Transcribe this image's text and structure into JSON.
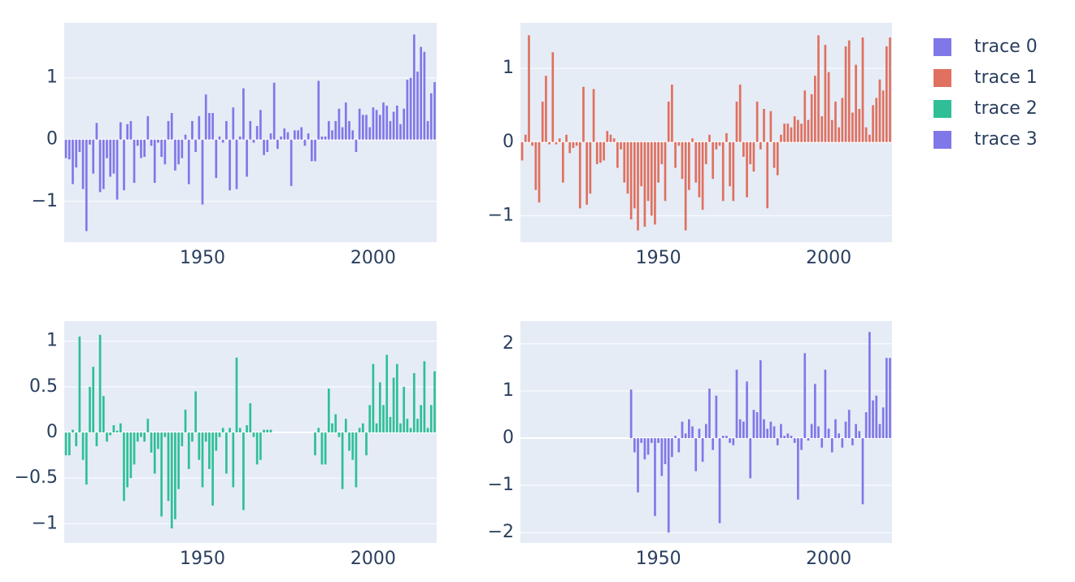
{
  "chart_data": [
    {
      "type": "bar",
      "legend": "right",
      "grid": true,
      "x": [
        1910,
        1911,
        1912,
        1913,
        1914,
        1915,
        1916,
        1917,
        1918,
        1919,
        1920,
        1921,
        1922,
        1923,
        1924,
        1925,
        1926,
        1927,
        1928,
        1929,
        1930,
        1931,
        1932,
        1933,
        1934,
        1935,
        1936,
        1937,
        1938,
        1939,
        1940,
        1941,
        1942,
        1943,
        1944,
        1945,
        1946,
        1947,
        1948,
        1949,
        1950,
        1951,
        1952,
        1953,
        1954,
        1955,
        1956,
        1957,
        1958,
        1959,
        1960,
        1961,
        1962,
        1963,
        1964,
        1965,
        1966,
        1967,
        1968,
        1969,
        1970,
        1971,
        1972,
        1973,
        1974,
        1975,
        1976,
        1977,
        1978,
        1979,
        1980,
        1981,
        1982,
        1983,
        1984,
        1985,
        1986,
        1987,
        1988,
        1989,
        1990,
        1991,
        1992,
        1993,
        1994,
        1995,
        1996,
        1997,
        1998,
        1999,
        2000,
        2001,
        2002,
        2003,
        2004,
        2005,
        2006,
        2007,
        2008,
        2009,
        2010,
        2011,
        2012,
        2013,
        2014,
        2015,
        2016,
        2017,
        2018
      ],
      "series": [
        {
          "name": "trace 0",
          "color": "#8078e8",
          "values": [
            -0.3,
            -0.32,
            -0.72,
            -0.45,
            -0.2,
            -0.8,
            -1.48,
            -0.08,
            -0.55,
            0.27,
            -0.85,
            -0.8,
            -0.3,
            -0.6,
            -0.55,
            -0.97,
            0.28,
            -0.82,
            0.25,
            0.3,
            -0.7,
            -0.1,
            -0.3,
            -0.28,
            0.38,
            -0.1,
            -0.7,
            -0.05,
            -0.28,
            -0.4,
            0.3,
            0.43,
            -0.5,
            -0.4,
            -0.3,
            0.08,
            -0.72,
            0.3,
            -0.2,
            0.38,
            -1.05,
            0.73,
            0.43,
            0.43,
            -0.62,
            0.05,
            -0.05,
            0.3,
            -0.82,
            0.52,
            -0.8,
            0.05,
            0.83,
            -0.6,
            0.3,
            -0.05,
            0.22,
            0.48,
            -0.25,
            -0.2,
            0.1,
            0.92,
            -0.15,
            0.05,
            0.18,
            0.12,
            -0.75,
            0.15,
            0.15,
            0.2,
            -0.1,
            0.1,
            -0.35,
            -0.35,
            0.95,
            0.05,
            0.05,
            0.3,
            0.15,
            0.3,
            0.5,
            0.2,
            0.6,
            0.3,
            0.15,
            -0.2,
            0.5,
            0.4,
            0.4,
            0.2,
            0.52,
            0.48,
            0.4,
            0.6,
            0.55,
            0.3,
            0.45,
            0.55,
            0.25,
            0.5,
            0.97,
            1.0,
            1.7,
            1.1,
            1.5,
            1.42,
            0.3,
            0.75,
            0.93
          ]
        }
      ],
      "xlim": [
        1909.5,
        2018.6
      ],
      "xticks": [
        1950,
        2000
      ],
      "ylim": [
        -1.66,
        1.89
      ],
      "yticks": [
        {
          "value": -1,
          "label": "−1"
        },
        0,
        1
      ]
    },
    {
      "type": "bar",
      "legend": "right",
      "grid": true,
      "x": [
        1910,
        1911,
        1912,
        1913,
        1914,
        1915,
        1916,
        1917,
        1918,
        1919,
        1920,
        1921,
        1922,
        1923,
        1924,
        1925,
        1926,
        1927,
        1928,
        1929,
        1930,
        1931,
        1932,
        1933,
        1934,
        1935,
        1936,
        1937,
        1938,
        1939,
        1940,
        1941,
        1942,
        1943,
        1944,
        1945,
        1946,
        1947,
        1948,
        1949,
        1950,
        1951,
        1952,
        1953,
        1954,
        1955,
        1956,
        1957,
        1958,
        1959,
        1960,
        1961,
        1962,
        1963,
        1964,
        1965,
        1966,
        1967,
        1968,
        1969,
        1970,
        1971,
        1972,
        1973,
        1974,
        1975,
        1976,
        1977,
        1978,
        1979,
        1980,
        1981,
        1982,
        1983,
        1984,
        1985,
        1986,
        1987,
        1988,
        1989,
        1990,
        1991,
        1992,
        1993,
        1994,
        1995,
        1996,
        1997,
        1998,
        1999,
        2000,
        2001,
        2002,
        2003,
        2004,
        2005,
        2006,
        2007,
        2008,
        2009,
        2010,
        2011,
        2012,
        2013,
        2014,
        2015,
        2016,
        2017,
        2018
      ],
      "series": [
        {
          "name": "trace 1",
          "color": "#e0705f",
          "values": [
            -0.25,
            0.1,
            1.45,
            -0.05,
            -0.65,
            -0.82,
            0.55,
            0.9,
            -0.03,
            1.22,
            -0.03,
            0.05,
            -0.55,
            0.1,
            -0.15,
            -0.08,
            -0.05,
            -0.9,
            0.75,
            -0.85,
            -0.7,
            0.72,
            -0.3,
            -0.28,
            -0.25,
            0.15,
            0.1,
            0.05,
            -0.35,
            -0.1,
            -0.55,
            -0.7,
            -1.05,
            -0.9,
            -1.2,
            -0.6,
            -1.15,
            -0.8,
            -1.0,
            -1.12,
            -0.55,
            -0.3,
            -0.8,
            0.55,
            0.78,
            -0.35,
            -0.05,
            -0.5,
            -1.2,
            -0.65,
            0.05,
            -0.55,
            -0.75,
            -0.92,
            -0.3,
            0.1,
            -0.5,
            -0.1,
            -0.05,
            -0.8,
            0.12,
            -0.6,
            -0.8,
            0.55,
            0.78,
            -0.2,
            -0.75,
            -0.3,
            -0.4,
            0.55,
            -0.1,
            0.45,
            -0.9,
            0.42,
            -0.35,
            -0.45,
            0.1,
            0.25,
            0.25,
            0.2,
            0.35,
            0.3,
            0.25,
            0.7,
            0.3,
            0.65,
            0.9,
            1.45,
            0.35,
            1.32,
            0.95,
            0.3,
            0.55,
            0.2,
            0.6,
            1.3,
            1.38,
            0.4,
            1.05,
            0.45,
            1.42,
            0.2,
            0.1,
            0.5,
            0.6,
            0.85,
            0.7,
            1.3,
            1.42
          ]
        }
      ],
      "xlim": [
        1909.5,
        2018.6
      ],
      "xticks": [
        1950,
        2000
      ],
      "ylim": [
        -1.36,
        1.62
      ],
      "yticks": [
        {
          "value": -1,
          "label": "−1"
        },
        0,
        1
      ]
    },
    {
      "type": "bar",
      "legend": "right",
      "grid": true,
      "x": [
        1910,
        1911,
        1912,
        1913,
        1914,
        1915,
        1916,
        1917,
        1918,
        1919,
        1920,
        1921,
        1922,
        1923,
        1924,
        1925,
        1926,
        1927,
        1928,
        1929,
        1930,
        1931,
        1932,
        1933,
        1934,
        1935,
        1936,
        1937,
        1938,
        1939,
        1940,
        1941,
        1942,
        1943,
        1944,
        1945,
        1946,
        1947,
        1948,
        1949,
        1950,
        1951,
        1952,
        1953,
        1954,
        1955,
        1956,
        1957,
        1958,
        1959,
        1960,
        1961,
        1962,
        1963,
        1964,
        1965,
        1966,
        1967,
        1968,
        1969,
        1970,
        1971,
        1972,
        1973,
        1974,
        1975,
        1976,
        1977,
        1978,
        1979,
        1980,
        1981,
        1982,
        1983,
        1984,
        1985,
        1986,
        1987,
        1988,
        1989,
        1990,
        1991,
        1992,
        1993,
        1994,
        1995,
        1996,
        1997,
        1998,
        1999,
        2000,
        2001,
        2002,
        2003,
        2004,
        2005,
        2006,
        2007,
        2008,
        2009,
        2010,
        2011,
        2012,
        2013,
        2014,
        2015,
        2016,
        2017,
        2018
      ],
      "series": [
        {
          "name": "trace 2",
          "color": "#2fbf96",
          "values": [
            -0.25,
            -0.25,
            0.03,
            -0.15,
            1.05,
            -0.3,
            -0.57,
            0.5,
            0.72,
            -0.15,
            1.07,
            0.4,
            -0.1,
            -0.03,
            0.08,
            0.02,
            0.1,
            -0.75,
            -0.6,
            -0.5,
            -0.35,
            -0.1,
            -0.05,
            -0.1,
            0.15,
            -0.22,
            -0.45,
            -0.18,
            -0.92,
            -0.05,
            -0.75,
            -1.05,
            -0.95,
            -0.62,
            -0.15,
            0.25,
            -0.4,
            -0.1,
            0.45,
            -0.3,
            -0.6,
            -0.1,
            -0.4,
            -0.8,
            -0.2,
            -0.05,
            0.05,
            -0.45,
            0.05,
            -0.6,
            0.82,
            0.05,
            -0.85,
            0.08,
            0.32,
            -0.05,
            -0.35,
            -0.3,
            0.03,
            0.03,
            0.03,
            null,
            null,
            null,
            null,
            null,
            null,
            null,
            null,
            null,
            null,
            null,
            null,
            -0.25,
            0.05,
            -0.35,
            -0.35,
            0.48,
            0.1,
            0.2,
            -0.05,
            -0.62,
            0.15,
            -0.2,
            -0.3,
            -0.6,
            0.05,
            0.1,
            -0.25,
            0.3,
            0.75,
            0.1,
            0.55,
            0.3,
            0.85,
            0.17,
            0.6,
            0.75,
            0.1,
            0.5,
            0.15,
            0.05,
            0.65,
            0.15,
            0.3,
            0.78,
            0.05,
            0.3,
            0.67
          ]
        }
      ],
      "xlim": [
        1909.5,
        2018.6
      ],
      "xticks": [
        1950,
        2000
      ],
      "ylim": [
        -1.21,
        1.22
      ],
      "yticks": [
        {
          "value": -1,
          "label": "−1"
        },
        {
          "value": -0.5,
          "label": "−0.5"
        },
        0,
        0.5,
        1
      ]
    },
    {
      "type": "bar",
      "legend": "right",
      "grid": true,
      "x": [
        1942,
        1943,
        1944,
        1945,
        1946,
        1947,
        1948,
        1949,
        1950,
        1951,
        1952,
        1953,
        1954,
        1955,
        1956,
        1957,
        1958,
        1959,
        1960,
        1961,
        1962,
        1963,
        1964,
        1965,
        1966,
        1967,
        1968,
        1969,
        1970,
        1971,
        1972,
        1973,
        1974,
        1975,
        1976,
        1977,
        1978,
        1979,
        1980,
        1981,
        1982,
        1983,
        1984,
        1985,
        1986,
        1987,
        1988,
        1989,
        1990,
        1991,
        1992,
        1993,
        1994,
        1995,
        1996,
        1997,
        1998,
        1999,
        2000,
        2001,
        2002,
        2003,
        2004,
        2005,
        2006,
        2007,
        2008,
        2009,
        2010,
        2011,
        2012,
        2013,
        2014,
        2015,
        2016,
        2017,
        2018
      ],
      "series": [
        {
          "name": "trace 3",
          "color": "#8078e8",
          "values": [
            1.03,
            -0.3,
            -1.15,
            -0.1,
            -0.45,
            -0.35,
            -0.1,
            -1.65,
            -0.1,
            -0.8,
            -0.55,
            -2.0,
            -0.4,
            0.05,
            -0.3,
            0.35,
            0.1,
            0.4,
            0.25,
            -0.7,
            0.2,
            -0.5,
            0.3,
            1.05,
            -0.25,
            0.9,
            -1.8,
            0.05,
            0.05,
            -0.1,
            -0.15,
            1.45,
            0.4,
            0.35,
            1.2,
            -0.85,
            0.6,
            0.55,
            1.65,
            0.4,
            0.2,
            0.35,
            0.25,
            -0.15,
            0.3,
            0.05,
            0.1,
            0.05,
            -0.1,
            -1.3,
            -0.25,
            1.8,
            -0.05,
            0.3,
            1.15,
            0.25,
            -0.2,
            1.45,
            0.2,
            -0.3,
            0.4,
            0.1,
            -0.2,
            0.35,
            0.6,
            -0.15,
            0.3,
            0.15,
            -1.4,
            0.55,
            2.25,
            0.8,
            0.9,
            0.3,
            0.65,
            1.7,
            1.7
          ]
        }
      ],
      "xlim": [
        1909.5,
        2018.6
      ],
      "xticks": [
        1950,
        2000
      ],
      "ylim": [
        -2.22,
        2.48
      ],
      "yticks": [
        {
          "value": -2,
          "label": "−2"
        },
        {
          "value": -1,
          "label": "−1"
        },
        0,
        1,
        2
      ]
    }
  ]
}
